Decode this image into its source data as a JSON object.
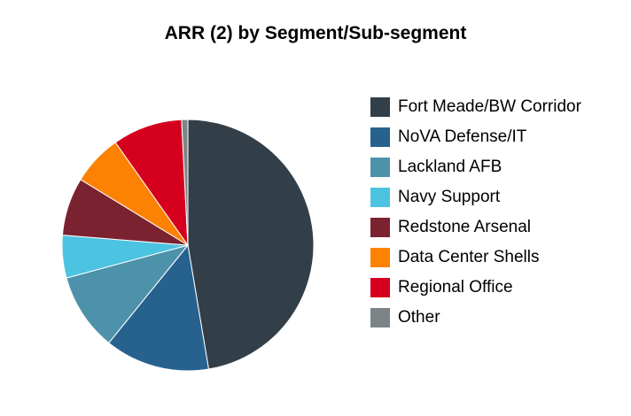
{
  "chart_data": {
    "type": "pie",
    "title": "ARR (2) by Segment/Sub-segment",
    "legend_position": "right",
    "series": [
      {
        "name": "Fort Meade/BW Corridor",
        "value": 47.5,
        "color": "#333f48"
      },
      {
        "name": "NoVA Defense/IT",
        "value": 13.5,
        "color": "#27628f"
      },
      {
        "name": "Lackland AFB",
        "value": 10.0,
        "color": "#4d92aa"
      },
      {
        "name": "Navy Support",
        "value": 5.5,
        "color": "#4cc3e0"
      },
      {
        "name": "Redstone Arsenal",
        "value": 7.5,
        "color": "#7b2230"
      },
      {
        "name": "Data Center Shells",
        "value": 6.5,
        "color": "#fd8204"
      },
      {
        "name": "Regional Office",
        "value": 9.0,
        "color": "#d5001e"
      },
      {
        "name": "Other",
        "value": 0.8,
        "color": "#7c8487"
      }
    ]
  }
}
